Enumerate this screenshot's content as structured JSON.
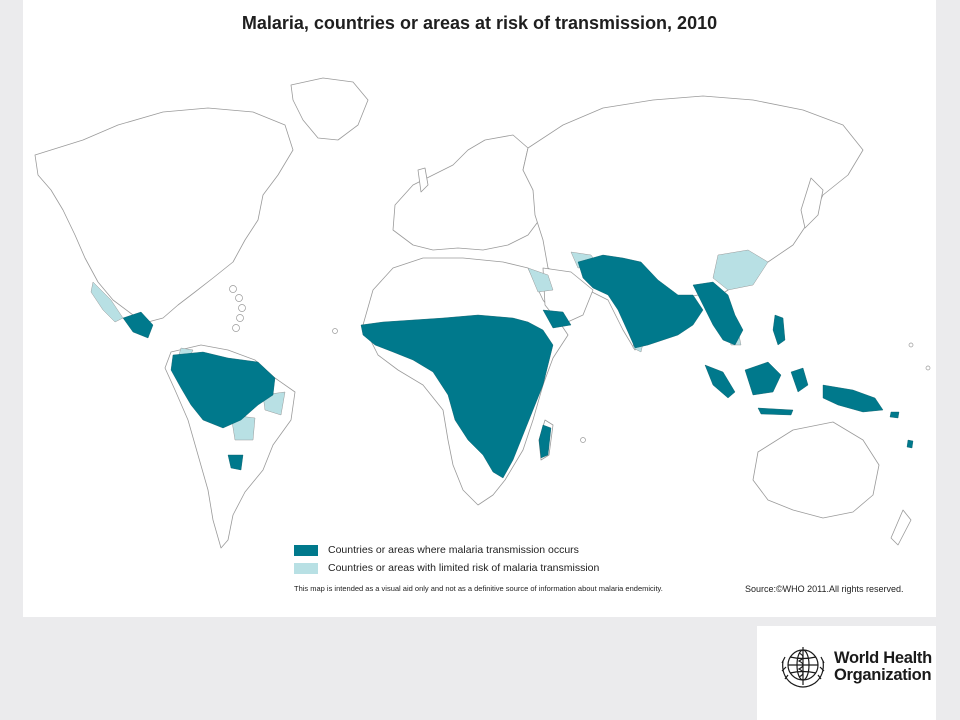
{
  "map": {
    "title": "Malaria, countries or areas at risk of transmission, 2010",
    "legend": [
      {
        "label": "Countries or areas where malaria transmission occurs",
        "color": "#00798c"
      },
      {
        "label": "Countries or areas with limited risk of malaria transmission",
        "color": "#b8e0e4"
      }
    ],
    "disclaimer": "This map is intended as a visual aid only and not as a definitive source of information about malaria endemicity.",
    "source": "Source:©WHO 2011.All rights reserved."
  },
  "colors": {
    "transmission": "#00798c",
    "limited_risk": "#b8e0e4",
    "land": "#ffffff",
    "border": "#9a9a9a",
    "page_background": "#ebebed"
  },
  "logo": {
    "line1": "World Health",
    "line2": "Organization",
    "emblem": "who-emblem-icon"
  }
}
